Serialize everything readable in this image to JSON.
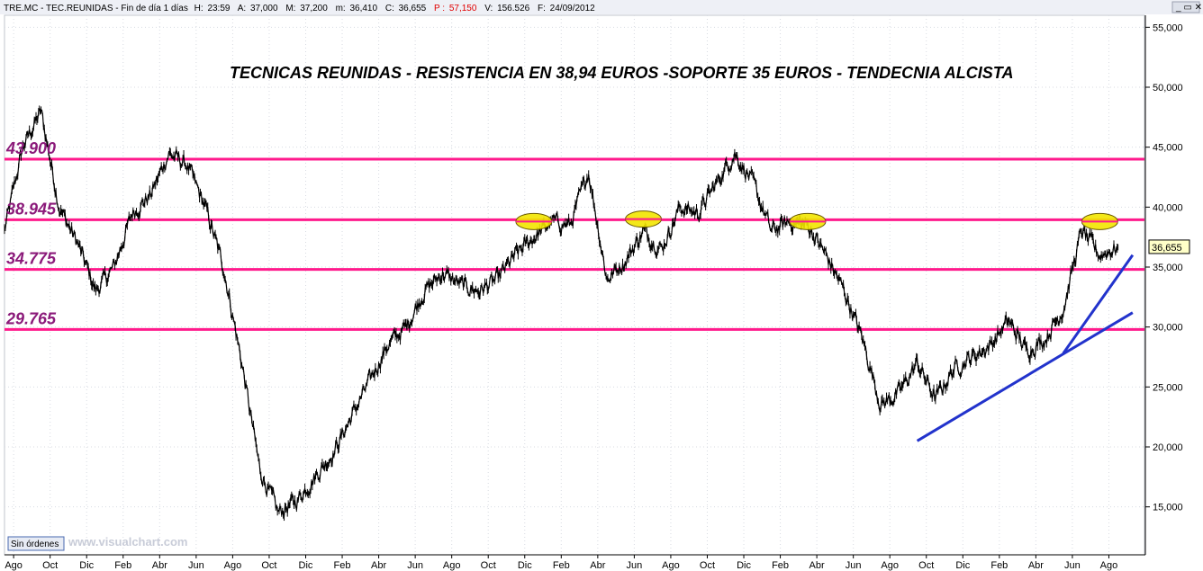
{
  "header": {
    "symbol": "TRE.MC - TEC.REUNIDAS - Fin de día 1 días",
    "h_label": "H:",
    "h_value": "23:59",
    "a_label": "A:",
    "a_value": "37,000",
    "m_label": "M:",
    "m_value": "37,200",
    "mm_label": "m:",
    "mm_value": "36,410",
    "c_label": "C:",
    "c_value": "36,655",
    "p_label": "P :",
    "p_value": "57,150",
    "v_label": "V:",
    "v_value": "156.526",
    "f_label": "F:",
    "f_value": "24/09/2012"
  },
  "status_button": "Sin órdenes",
  "watermark": "www.visualchart.com",
  "last_price_tag": "36,655",
  "colors": {
    "price": "#000000",
    "horizontal_levels": "#ff1a8c",
    "trendlines": "#2233cc",
    "highlight_fill": "#f2e600",
    "level_labels": "#8b1a7a"
  },
  "chart_data": {
    "type": "line",
    "title": "TECNICAS REUNIDAS - RESISTENCIA EN 38,94 EUROS -SOPORTE 35 EUROS - TENDECNIA ALCISTA",
    "ylim": [
      11000,
      56000
    ],
    "y_ticks": [
      "15,000",
      "20,000",
      "25,000",
      "30,000",
      "35,000",
      "40,000",
      "45,000",
      "50,000",
      "55,000"
    ],
    "y_tick_values": [
      15000,
      20000,
      25000,
      30000,
      35000,
      40000,
      45000,
      50000,
      55000
    ],
    "x_month_labels": [
      "Ago",
      "Oct",
      "Dic",
      "Feb",
      "Abr",
      "Jun",
      "Ago",
      "Oct",
      "Dic",
      "Feb",
      "Abr",
      "Jun",
      "Ago",
      "Oct",
      "Dic",
      "Feb",
      "Abr",
      "Jun",
      "Ago",
      "Oct",
      "Dic",
      "Feb",
      "Abr",
      "Jun",
      "Ago",
      "Oct",
      "Dic",
      "Feb",
      "Abr",
      "Jun",
      "Ago"
    ],
    "x_start": "2007-08",
    "x_end": "2012-10",
    "series": [
      {
        "x": [
          "2007-08",
          "2007-09",
          "2007-10",
          "2007-11",
          "2007-12",
          "2008-01",
          "2008-02",
          "2008-03",
          "2008-04",
          "2008-05",
          "2008-06",
          "2008-07",
          "2008-08",
          "2008-09",
          "2008-10",
          "2008-11",
          "2008-12",
          "2009-01",
          "2009-02",
          "2009-03",
          "2009-04",
          "2009-05",
          "2009-06",
          "2009-07",
          "2009-08",
          "2009-09",
          "2009-10",
          "2009-11",
          "2009-12",
          "2010-01",
          "2010-02",
          "2010-03",
          "2010-04",
          "2010-05",
          "2010-06",
          "2010-07",
          "2010-08",
          "2010-09",
          "2010-10",
          "2010-11",
          "2010-12",
          "2011-01",
          "2011-02",
          "2011-03",
          "2011-04",
          "2011-05",
          "2011-06",
          "2011-07",
          "2011-08",
          "2011-09",
          "2011-10",
          "2011-11",
          "2011-12",
          "2012-01",
          "2012-02",
          "2012-03",
          "2012-04",
          "2012-05",
          "2012-06",
          "2012-07",
          "2012-08",
          "2012-09"
        ],
        "y": [
          38000,
          45000,
          48000,
          40000,
          37000,
          33000,
          35000,
          39500,
          41000,
          44500,
          43500,
          40000,
          35000,
          27000,
          18000,
          14500,
          15500,
          17500,
          19500,
          22500,
          25500,
          28500,
          30000,
          33000,
          34500,
          33500,
          33000,
          34000,
          36000,
          37500,
          38800,
          38500,
          43000,
          34000,
          35500,
          38000,
          36500,
          40000,
          39500,
          42000,
          44500,
          42000,
          38000,
          38800,
          38500,
          36000,
          33000,
          29000,
          23500,
          24500,
          27000,
          24000,
          26500,
          27500,
          28500,
          30500,
          28000,
          29000,
          31500,
          38000,
          36000,
          36655
        ]
      }
    ],
    "horizontal_levels": [
      {
        "label": "43.900",
        "value": 44000
      },
      {
        "label": "38.945",
        "value": 38950
      },
      {
        "label": "34.775",
        "value": 34800
      },
      {
        "label": "29.765",
        "value": 29800
      }
    ],
    "trendlines": [
      {
        "from": [
          "2011-10",
          20500
        ],
        "to": [
          "2012-10",
          31200
        ]
      },
      {
        "from": [
          "2012-06",
          27800
        ],
        "to": [
          "2012-10",
          36000
        ]
      }
    ],
    "highlights": [
      {
        "x": "2010-01",
        "y": 38800
      },
      {
        "x": "2010-07",
        "y": 39000
      },
      {
        "x": "2011-04",
        "y": 38800
      },
      {
        "x": "2012-08",
        "y": 38800
      }
    ]
  }
}
